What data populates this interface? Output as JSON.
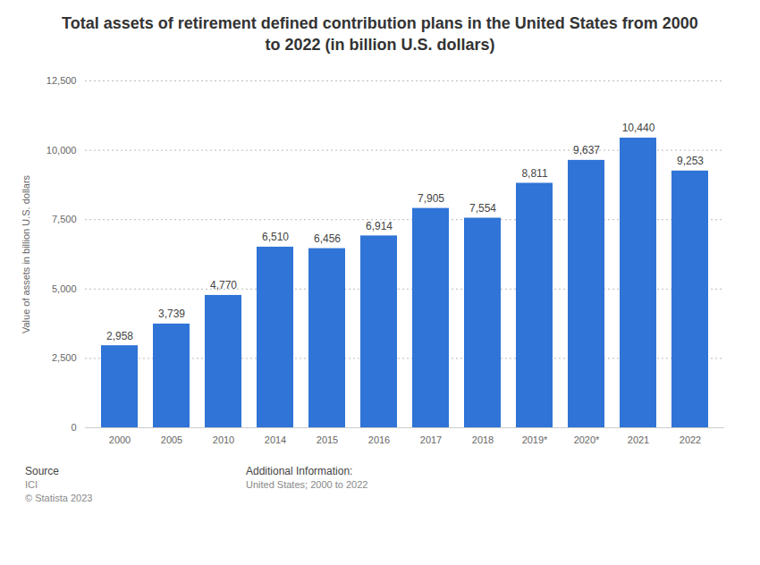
{
  "chart_data": {
    "type": "bar",
    "title": "Total assets of retirement defined contribution plans in the United States from 2000 to 2022 (in billion U.S. dollars)",
    "ylabel": "Value of assets in billion U.S. dollars",
    "categories": [
      "2000",
      "2005",
      "2010",
      "2014",
      "2015",
      "2016",
      "2017",
      "2018",
      "2019*",
      "2020*",
      "2021",
      "2022"
    ],
    "values": [
      2958,
      3739,
      4770,
      6510,
      6456,
      6914,
      7905,
      7554,
      8811,
      9637,
      10440,
      9253
    ],
    "value_labels": [
      "2,958",
      "3,739",
      "4,770",
      "6,510",
      "6,456",
      "6,914",
      "7,905",
      "7,554",
      "8,811",
      "9,637",
      "10,440",
      "9,253"
    ],
    "data_labels": true,
    "color": "#2f74d6",
    "ylim": [
      0,
      12500
    ],
    "yticks": [
      0,
      {
        "value": 2500,
        "label": "2,500"
      },
      {
        "value": 5000,
        "label": "5,000"
      },
      {
        "value": 7500,
        "label": "7,500"
      },
      {
        "value": 10000,
        "label": "10,000"
      },
      {
        "value": 12500,
        "label": "12,500"
      }
    ],
    "grid": true,
    "source_label": "Source",
    "source": "ICI",
    "copyright": "© Statista 2023",
    "additional_info_label": "Additional Information:",
    "additional_info": "United States; 2000 to 2022"
  }
}
